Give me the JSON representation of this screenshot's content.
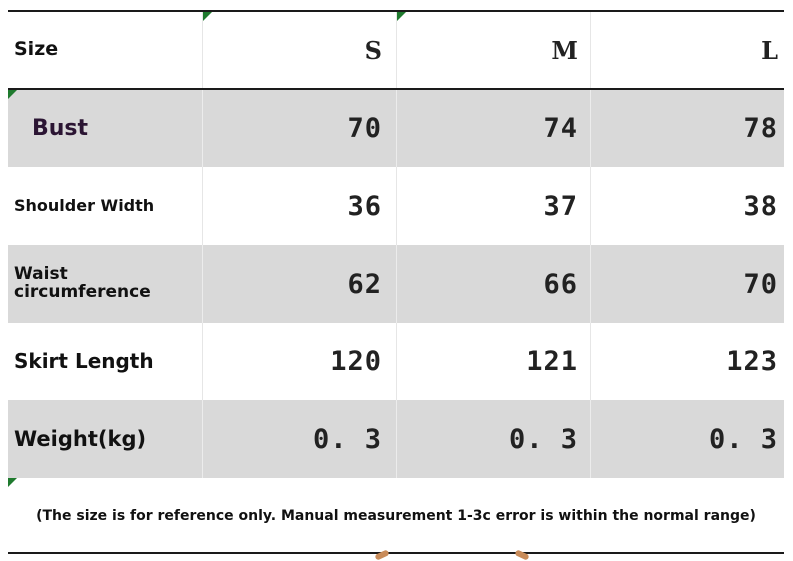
{
  "table": {
    "header": {
      "label": "Size",
      "sizes": [
        "S",
        "M",
        "L"
      ]
    },
    "rows": [
      {
        "label": "Bust",
        "values": [
          "70",
          "74",
          "78"
        ]
      },
      {
        "label": "Shoulder Width",
        "values": [
          "36",
          "37",
          "38"
        ]
      },
      {
        "label": "Waist circumference",
        "values": [
          "62",
          "66",
          "70"
        ]
      },
      {
        "label": "Skirt Length",
        "values": [
          "120",
          "121",
          "123"
        ]
      },
      {
        "label": "Weight(kg)",
        "values": [
          "0. 3",
          "0. 3",
          "0. 3"
        ]
      }
    ],
    "note": "(The size is for reference only. Manual measurement 1-3c error is within the normal range)"
  },
  "colors": {
    "row_shade": "#d9d9d9",
    "marker_green": "#1f7a2e"
  }
}
